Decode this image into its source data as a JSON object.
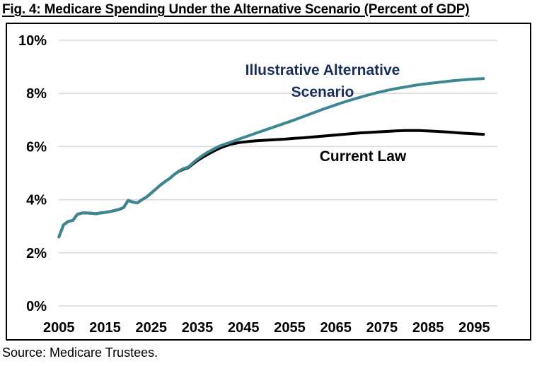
{
  "page": {
    "source": "Source: Medicare Trustees.",
    "annotations": {
      "alternative_line1": "Illustrative Alternative",
      "alternative_line2": "Scenario",
      "current_law": "Current Law"
    },
    "colors": {
      "alternative_line": "#3d8795",
      "current_law_line": "#000000",
      "annotation_navy": "#182f5e",
      "gridline": "#d9d9d9"
    }
  },
  "chart_data": {
    "type": "line",
    "title": "Fig. 4: Medicare Spending Under the Alternative Scenario (Percent of GDP)",
    "xlabel": "",
    "ylabel": "Percent of GDP",
    "x_range": [
      2005,
      2100
    ],
    "y_range": [
      0,
      10
    ],
    "x_ticks": [
      2005,
      2015,
      2025,
      2035,
      2045,
      2055,
      2065,
      2075,
      2085,
      2095
    ],
    "y_ticks": [
      0,
      2,
      4,
      6,
      8,
      10
    ],
    "y_tick_suffix": "%",
    "grid": "horizontal",
    "legend": "inline-annotations",
    "series": [
      {
        "name": "Current Law",
        "color": "#000000",
        "points": [
          [
            2005,
            2.6
          ],
          [
            2006,
            3.05
          ],
          [
            2007,
            3.18
          ],
          [
            2008,
            3.22
          ],
          [
            2009,
            3.45
          ],
          [
            2010,
            3.5
          ],
          [
            2011,
            3.5
          ],
          [
            2012,
            3.49
          ],
          [
            2013,
            3.47
          ],
          [
            2014,
            3.5
          ],
          [
            2015,
            3.52
          ],
          [
            2016,
            3.55
          ],
          [
            2017,
            3.59
          ],
          [
            2018,
            3.63
          ],
          [
            2019,
            3.7
          ],
          [
            2020,
            3.97
          ],
          [
            2021,
            3.91
          ],
          [
            2022,
            3.88
          ],
          [
            2023,
            4.0
          ],
          [
            2024,
            4.1
          ],
          [
            2025,
            4.25
          ],
          [
            2026,
            4.4
          ],
          [
            2027,
            4.55
          ],
          [
            2028,
            4.68
          ],
          [
            2029,
            4.8
          ],
          [
            2030,
            4.95
          ],
          [
            2031,
            5.07
          ],
          [
            2032,
            5.15
          ],
          [
            2033,
            5.2
          ],
          [
            2034,
            5.34
          ],
          [
            2035,
            5.47
          ],
          [
            2036,
            5.58
          ],
          [
            2037,
            5.68
          ],
          [
            2038,
            5.78
          ],
          [
            2039,
            5.87
          ],
          [
            2040,
            5.95
          ],
          [
            2042,
            6.08
          ],
          [
            2044,
            6.15
          ],
          [
            2046,
            6.19
          ],
          [
            2048,
            6.22
          ],
          [
            2050,
            6.24
          ],
          [
            2052,
            6.26
          ],
          [
            2054,
            6.28
          ],
          [
            2056,
            6.31
          ],
          [
            2058,
            6.33
          ],
          [
            2060,
            6.36
          ],
          [
            2062,
            6.39
          ],
          [
            2064,
            6.42
          ],
          [
            2066,
            6.45
          ],
          [
            2068,
            6.48
          ],
          [
            2070,
            6.51
          ],
          [
            2072,
            6.53
          ],
          [
            2074,
            6.55
          ],
          [
            2076,
            6.57
          ],
          [
            2078,
            6.59
          ],
          [
            2080,
            6.6
          ],
          [
            2083,
            6.6
          ],
          [
            2086,
            6.58
          ],
          [
            2089,
            6.55
          ],
          [
            2092,
            6.51
          ],
          [
            2095,
            6.48
          ],
          [
            2097,
            6.46
          ]
        ]
      },
      {
        "name": "Illustrative Alternative Scenario",
        "color": "#3d8795",
        "points": [
          [
            2005,
            2.6
          ],
          [
            2006,
            3.05
          ],
          [
            2007,
            3.18
          ],
          [
            2008,
            3.22
          ],
          [
            2009,
            3.45
          ],
          [
            2010,
            3.5
          ],
          [
            2011,
            3.5
          ],
          [
            2012,
            3.49
          ],
          [
            2013,
            3.47
          ],
          [
            2014,
            3.5
          ],
          [
            2015,
            3.52
          ],
          [
            2016,
            3.55
          ],
          [
            2017,
            3.59
          ],
          [
            2018,
            3.63
          ],
          [
            2019,
            3.7
          ],
          [
            2020,
            3.97
          ],
          [
            2021,
            3.91
          ],
          [
            2022,
            3.88
          ],
          [
            2023,
            4.0
          ],
          [
            2024,
            4.1
          ],
          [
            2025,
            4.25
          ],
          [
            2026,
            4.4
          ],
          [
            2027,
            4.55
          ],
          [
            2028,
            4.68
          ],
          [
            2029,
            4.8
          ],
          [
            2030,
            4.95
          ],
          [
            2031,
            5.08
          ],
          [
            2032,
            5.17
          ],
          [
            2033,
            5.22
          ],
          [
            2034,
            5.38
          ],
          [
            2035,
            5.52
          ],
          [
            2036,
            5.65
          ],
          [
            2037,
            5.76
          ],
          [
            2038,
            5.86
          ],
          [
            2039,
            5.95
          ],
          [
            2040,
            6.03
          ],
          [
            2042,
            6.15
          ],
          [
            2044,
            6.28
          ],
          [
            2046,
            6.4
          ],
          [
            2048,
            6.52
          ],
          [
            2050,
            6.64
          ],
          [
            2052,
            6.76
          ],
          [
            2054,
            6.88
          ],
          [
            2056,
            7.0
          ],
          [
            2058,
            7.13
          ],
          [
            2060,
            7.26
          ],
          [
            2062,
            7.39
          ],
          [
            2064,
            7.51
          ],
          [
            2066,
            7.63
          ],
          [
            2068,
            7.74
          ],
          [
            2070,
            7.84
          ],
          [
            2072,
            7.94
          ],
          [
            2074,
            8.03
          ],
          [
            2076,
            8.11
          ],
          [
            2078,
            8.18
          ],
          [
            2080,
            8.24
          ],
          [
            2082,
            8.3
          ],
          [
            2084,
            8.35
          ],
          [
            2086,
            8.39
          ],
          [
            2088,
            8.43
          ],
          [
            2090,
            8.47
          ],
          [
            2092,
            8.5
          ],
          [
            2094,
            8.53
          ],
          [
            2097,
            8.56
          ]
        ]
      }
    ]
  }
}
